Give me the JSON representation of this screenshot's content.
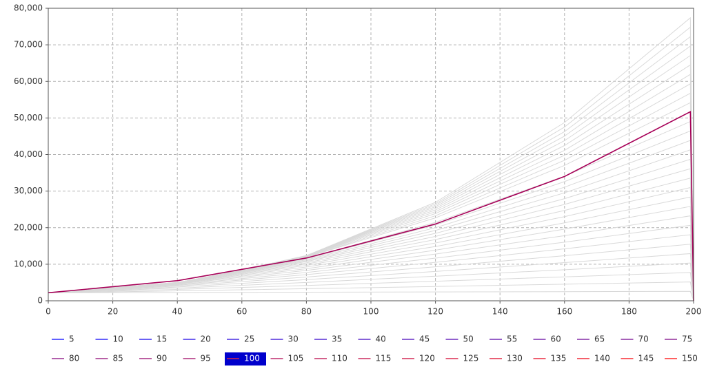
{
  "chart_data": {
    "type": "line",
    "x": [
      0,
      40,
      80,
      120,
      160,
      199,
      200
    ],
    "xlim": [
      0,
      200
    ],
    "xticks": [
      0,
      20,
      40,
      60,
      80,
      100,
      120,
      140,
      160,
      180,
      200
    ],
    "ylim": [
      0,
      80000
    ],
    "yticks": [
      0,
      {
        "value": 10000,
        "label": "10,000"
      },
      {
        "value": 20000,
        "label": "20,000"
      },
      {
        "value": 30000,
        "label": "30,000"
      },
      {
        "value": 40000,
        "label": "40,000"
      },
      {
        "value": 50000,
        "label": "50,000"
      },
      {
        "value": 60000,
        "label": "60,000"
      },
      {
        "value": 70000,
        "label": "70,000"
      },
      {
        "value": 80000,
        "label": "80,000"
      }
    ],
    "grid": true,
    "legend": "bottom",
    "dim_color": "#d9d9d9",
    "selected_background": "#0000cc",
    "series": [
      {
        "name": "5",
        "color": "#0000ff",
        "values": [
          2200,
          2270,
          2350,
          2420,
          2500,
          2580,
          0
        ]
      },
      {
        "name": "10",
        "color": "#0900f6",
        "values": [
          2200,
          2720,
          3310,
          3910,
          4540,
          5160,
          0
        ]
      },
      {
        "name": "15",
        "color": "#1200ed",
        "values": [
          2200,
          3120,
          4190,
          5350,
          6540,
          7740,
          0
        ]
      },
      {
        "name": "20",
        "color": "#1a00e5",
        "values": [
          2200,
          3470,
          5020,
          6720,
          8500,
          10320,
          0
        ]
      },
      {
        "name": "25",
        "color": "#2300dc",
        "values": [
          2200,
          3760,
          5790,
          8030,
          10440,
          12900,
          0
        ]
      },
      {
        "name": "30",
        "color": "#2c00d3",
        "values": [
          2200,
          4020,
          6490,
          9290,
          12330,
          15480,
          0
        ]
      },
      {
        "name": "35",
        "color": "#3500ca",
        "values": [
          2200,
          4230,
          7150,
          10510,
          14210,
          18060,
          0
        ]
      },
      {
        "name": "40",
        "color": "#3e00c1",
        "values": [
          2200,
          4410,
          7730,
          11660,
          16030,
          20640,
          0
        ]
      },
      {
        "name": "45",
        "color": "#4600b9",
        "values": [
          2200,
          4580,
          8300,
          12770,
          17820,
          23220,
          0
        ]
      },
      {
        "name": "50",
        "color": "#4f00b0",
        "values": [
          2200,
          4700,
          8780,
          13840,
          19590,
          25800,
          0
        ]
      },
      {
        "name": "55",
        "color": "#5800a7",
        "values": [
          2200,
          4800,
          9240,
          14840,
          21310,
          28380,
          0
        ]
      },
      {
        "name": "60",
        "color": "#61009e",
        "values": [
          2200,
          4880,
          9680,
          15800,
          23020,
          30960,
          0
        ]
      },
      {
        "name": "65",
        "color": "#6a0095",
        "values": [
          2200,
          4940,
          10040,
          16740,
          24700,
          33540,
          0
        ]
      },
      {
        "name": "70",
        "color": "#72008d",
        "values": [
          2200,
          4980,
          10380,
          17600,
          26350,
          36120,
          0
        ]
      },
      {
        "name": "75",
        "color": "#7b0084",
        "values": [
          2200,
          5000,
          10710,
          18440,
          27930,
          38700,
          0
        ]
      },
      {
        "name": "80",
        "color": "#84007b",
        "values": [
          2200,
          5010,
          10950,
          19240,
          29520,
          41280,
          0
        ]
      },
      {
        "name": "85",
        "color": "#8d0072",
        "values": [
          2200,
          5010,
          11200,
          19990,
          31070,
          43860,
          0
        ]
      },
      {
        "name": "90",
        "color": "#95006a",
        "values": [
          2200,
          5000,
          11450,
          20740,
          32590,
          46440,
          0
        ]
      },
      {
        "name": "95",
        "color": "#9e0061",
        "values": [
          2200,
          4980,
          11610,
          21440,
          34080,
          49020,
          0
        ]
      },
      {
        "name": "100",
        "color": "#a70058",
        "selected": true,
        "values": [
          2200,
          5500,
          11700,
          21000,
          34000,
          51700,
          0
        ]
      },
      {
        "name": "105",
        "color": "#b0004f",
        "values": [
          2200,
          4910,
          11920,
          22680,
          37030,
          54180,
          0
        ]
      },
      {
        "name": "110",
        "color": "#b90046",
        "values": [
          2200,
          4870,
          12020,
          23260,
          38430,
          56760,
          0
        ]
      },
      {
        "name": "115",
        "color": "#c1003e",
        "values": [
          2200,
          4820,
          12140,
          23860,
          39800,
          59340,
          0
        ]
      },
      {
        "name": "120",
        "color": "#ca0035",
        "values": [
          2200,
          4770,
          12230,
          24360,
          41140,
          61920,
          0
        ]
      },
      {
        "name": "125",
        "color": "#d3002c",
        "values": [
          2200,
          4720,
          12270,
          24850,
          42470,
          64500,
          0
        ]
      },
      {
        "name": "130",
        "color": "#dc0023",
        "values": [
          2200,
          4660,
          12320,
          25300,
          43790,
          67080,
          0
        ]
      },
      {
        "name": "135",
        "color": "#e5001a",
        "values": [
          2200,
          4600,
          12320,
          25740,
          45040,
          69660,
          0
        ]
      },
      {
        "name": "140",
        "color": "#ed0012",
        "values": [
          2200,
          4530,
          12360,
          26150,
          46260,
          72240,
          0
        ]
      },
      {
        "name": "145",
        "color": "#f60009",
        "values": [
          2200,
          4470,
          12370,
          26530,
          47520,
          74820,
          0
        ]
      },
      {
        "name": "150",
        "color": "#ff0000",
        "values": [
          2200,
          4400,
          12350,
          26940,
          48750,
          77400,
          0
        ]
      }
    ]
  }
}
